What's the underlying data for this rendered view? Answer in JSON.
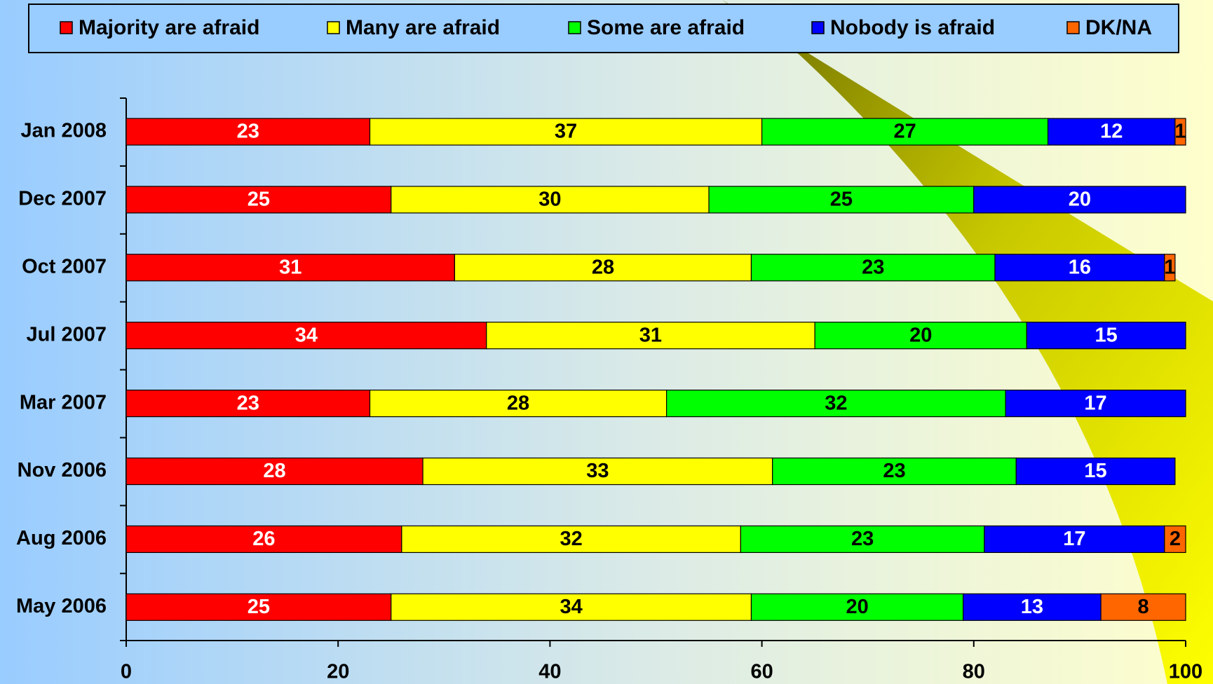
{
  "chart_data": {
    "type": "stacked-bar-horizontal",
    "categories": [
      "Jan 2008",
      "Dec 2007",
      "Oct 2007",
      "Jul 2007",
      "Mar 2007",
      "Nov 2006",
      "Aug 2006",
      "May 2006"
    ],
    "series": [
      {
        "name": "Majority are afraid",
        "color": "#ff0000",
        "values": [
          23,
          25,
          31,
          34,
          23,
          28,
          26,
          25
        ]
      },
      {
        "name": "Many are afraid",
        "color": "#ffff00",
        "values": [
          37,
          30,
          28,
          31,
          28,
          33,
          32,
          34
        ]
      },
      {
        "name": "Some are afraid",
        "color": "#00ff00",
        "values": [
          27,
          25,
          23,
          20,
          32,
          23,
          23,
          20
        ]
      },
      {
        "name": "Nobody is afraid",
        "color": "#0000ff",
        "values": [
          12,
          20,
          16,
          15,
          17,
          15,
          17,
          13
        ]
      },
      {
        "name": "DK/NA",
        "color": "#ff6600",
        "values": [
          1,
          null,
          1,
          null,
          null,
          null,
          2,
          8
        ]
      }
    ],
    "xlim": [
      0,
      100
    ],
    "xticks": [
      0,
      20,
      40,
      60,
      80,
      100
    ],
    "legend": "top"
  }
}
